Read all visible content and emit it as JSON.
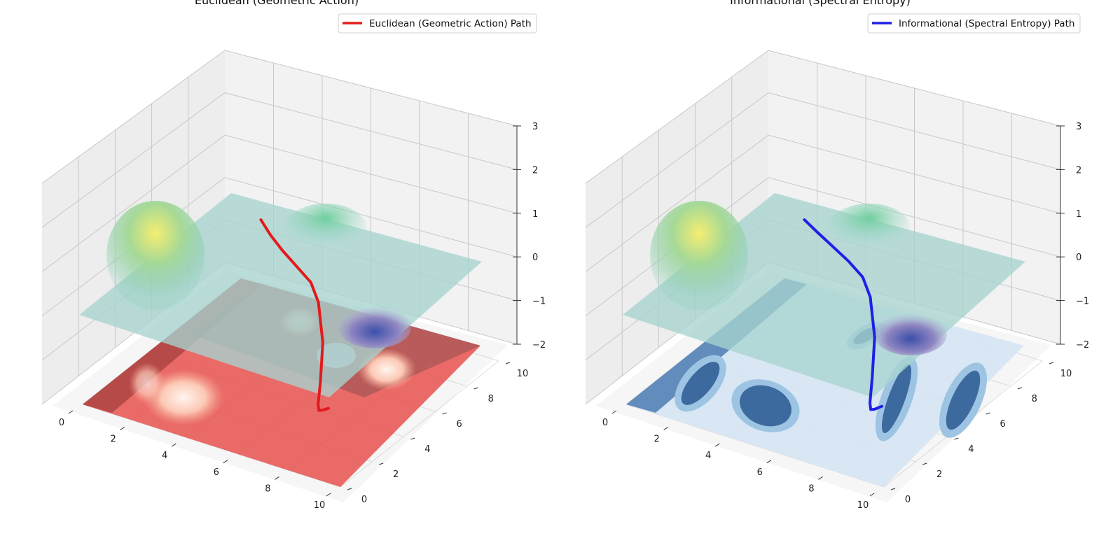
{
  "chart_data": [
    {
      "type": "surface",
      "title": "Euclidean (Geometric Action)",
      "xlim": [
        0,
        10
      ],
      "ylim": [
        0,
        10
      ],
      "zlim": [
        -2,
        3
      ],
      "x_ticks": [
        "0",
        "2",
        "4",
        "6",
        "8",
        "10"
      ],
      "y_ticks": [
        "0",
        "2",
        "4",
        "6",
        "8",
        "10"
      ],
      "z_ticks": [
        "−2",
        "−1",
        "0",
        "1",
        "2",
        "3"
      ],
      "grid": true,
      "legend_position": "top-right",
      "series": [
        {
          "name": "Euclidean (Geometric Action) Path",
          "color": "#e41a1c",
          "x": [
            2.0,
            2.5,
            3.2,
            4.0,
            4.8,
            5.4,
            6.0,
            6.4,
            6.8,
            7.2,
            7.6,
            8.0
          ],
          "y": [
            8.0,
            7.8,
            7.4,
            7.0,
            6.6,
            6.1,
            5.4,
            4.6,
            3.8,
            3.2,
            2.8,
            2.5
          ],
          "z": [
            0.3,
            0.1,
            0.0,
            -0.1,
            -0.2,
            -0.4,
            -1.0,
            -1.6,
            -1.8,
            -1.7,
            -1.5,
            -1.3
          ]
        }
      ]
    },
    {
      "type": "surface",
      "title": "Informational (Spectral Entropy)",
      "xlim": [
        0,
        10
      ],
      "ylim": [
        0,
        10
      ],
      "zlim": [
        -2,
        3
      ],
      "x_ticks": [
        "0",
        "2",
        "4",
        "6",
        "8",
        "10"
      ],
      "y_ticks": [
        "0",
        "2",
        "4",
        "6",
        "8",
        "10"
      ],
      "z_ticks": [
        "−2",
        "−1",
        "0",
        "1",
        "2",
        "3"
      ],
      "grid": true,
      "legend_position": "top-right",
      "series": [
        {
          "name": "Informational (Spectral Entropy) Path",
          "color": "#1f1fe6",
          "x": [
            2.0,
            2.6,
            3.4,
            4.2,
            5.0,
            5.6,
            6.2,
            6.6,
            7.0,
            7.4,
            7.8,
            8.2
          ],
          "y": [
            8.0,
            7.8,
            7.5,
            7.2,
            6.8,
            6.3,
            5.6,
            4.8,
            4.0,
            3.4,
            3.0,
            2.8
          ],
          "z": [
            0.3,
            0.2,
            0.1,
            0.0,
            -0.1,
            -0.3,
            -0.9,
            -1.5,
            -1.8,
            -1.7,
            -1.5,
            -1.3
          ]
        }
      ]
    }
  ]
}
